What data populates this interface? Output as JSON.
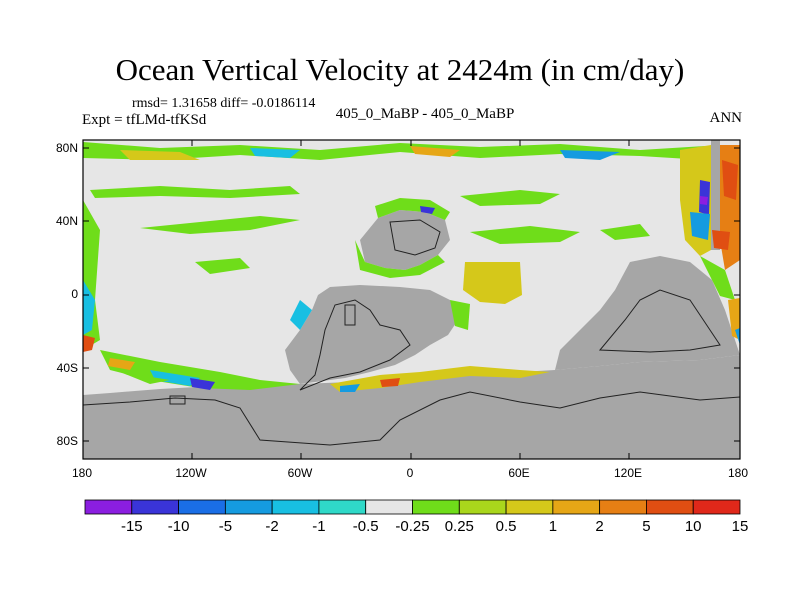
{
  "title": "Ocean Vertical Velocity at 2424m (in cm/day)",
  "stats": "rmsd= 1.31658 diff= -0.0186114",
  "experiment": "Expt = tfLMd-tfKSd",
  "case_label": "405_0_MaBP - 405_0_MaBP",
  "season": "ANN",
  "lat_ticks": [
    "80N",
    "40N",
    "0",
    "40S",
    "80S"
  ],
  "lon_ticks": [
    "180",
    "120W",
    "60W",
    "0",
    "60E",
    "120E",
    "180"
  ],
  "colorbar": {
    "labels": [
      "-15",
      "-10",
      "-5",
      "-2",
      "-1",
      "-0.5",
      "-0.25",
      "0.25",
      "0.5",
      "1",
      "2",
      "5",
      "10",
      "15"
    ],
    "colors": [
      "#8b1ee0",
      "#3a34d8",
      "#1a6ee6",
      "#159be0",
      "#18bfe2",
      "#2fd9c8",
      "#e6e6e6",
      "#6fdd1a",
      "#a9d61c",
      "#d5c81a",
      "#e6a616",
      "#e67f14",
      "#e04e12",
      "#e0281a"
    ]
  },
  "colors": {
    "land": "#a6a6a6",
    "ocean_near_zero": "#e6e6e6"
  }
}
